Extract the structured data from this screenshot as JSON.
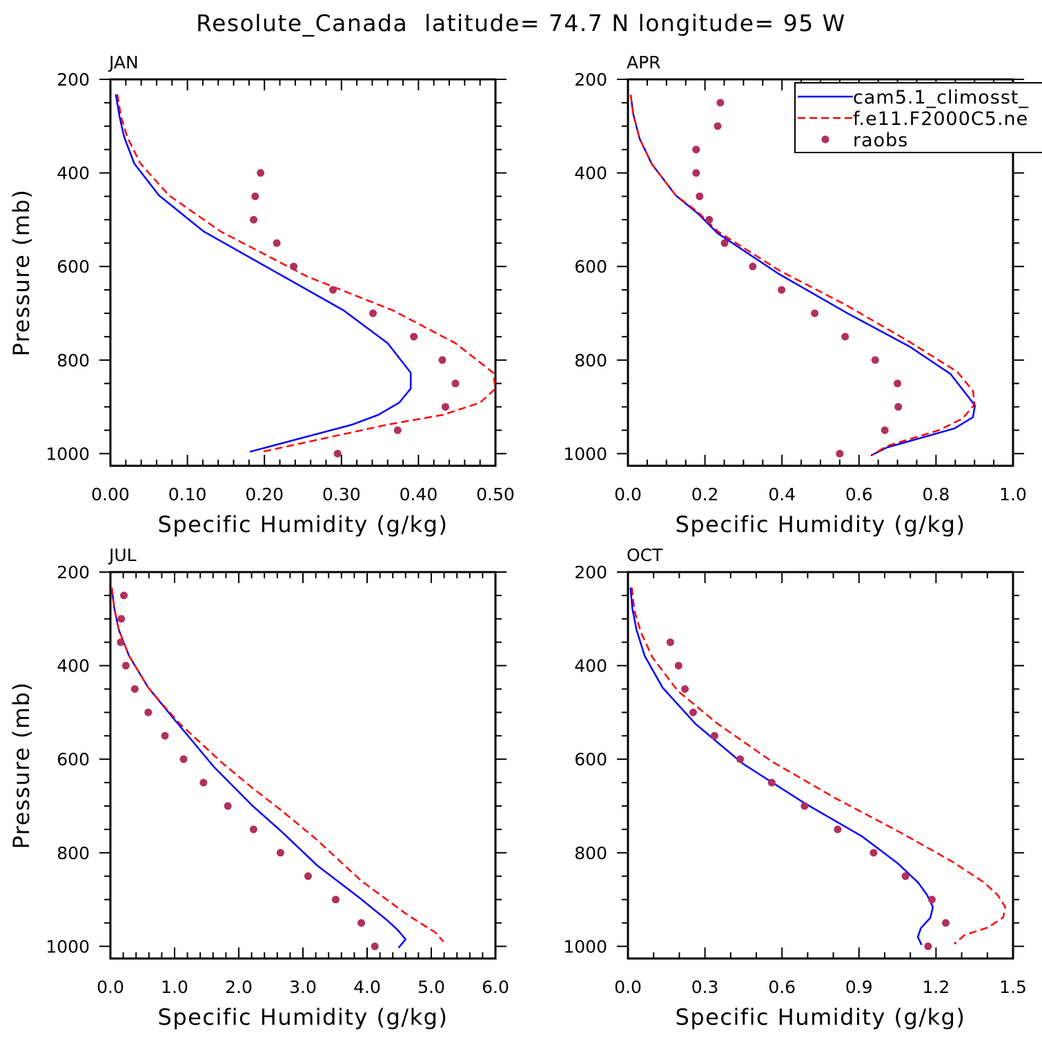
{
  "chart_data": {
    "title": "Resolute_Canada  latitude= 74.7 N longitude= 95 W",
    "legend": {
      "placement": "top-right of APR panel",
      "entries": [
        {
          "label": "cam5.1_climosst_",
          "style": "solid",
          "color": "#0000ff"
        },
        {
          "label": "f.e11.F2000C5.ne",
          "style": "dashed",
          "color": "#ff0000"
        },
        {
          "label": "raobs",
          "style": "dot",
          "color": "#b03060"
        }
      ]
    },
    "panels": [
      {
        "type": "line",
        "label": "JAN",
        "xlabel": "Specific Humidity (g/kg)",
        "ylabel": "Pressure (mb)",
        "xlim": [
          0,
          0.5
        ],
        "ylim": [
          200,
          1026
        ],
        "y_reversed": true,
        "xticks": [
          0,
          0.1,
          0.2,
          0.3,
          0.4,
          0.5
        ],
        "xtick_labels": [
          "0.00",
          "0.10",
          "0.20",
          "0.30",
          "0.40",
          "0.50"
        ],
        "xminor": 0.02,
        "yticks": [
          200,
          400,
          600,
          800,
          1000
        ],
        "ytick_labels": [
          "200",
          "400",
          "600",
          "800",
          "1000"
        ],
        "yminor": 50,
        "series": [
          {
            "name": "cam5.1_climosst_",
            "p": [
              232,
              281,
              324,
              380,
              448,
              525,
              694,
              764,
              827,
              861,
              891,
              917,
              938,
              996
            ],
            "q": [
              0.007,
              0.012,
              0.018,
              0.031,
              0.063,
              0.121,
              0.303,
              0.36,
              0.39,
              0.39,
              0.375,
              0.348,
              0.314,
              0.181
            ]
          },
          {
            "name": "f.e11.F2000C5.ne",
            "p": [
              232,
              281,
              324,
              380,
              448,
              525,
              621,
              694,
              764,
              827,
              861,
              891,
              917,
              938,
              996
            ],
            "q": [
              0.009,
              0.014,
              0.022,
              0.039,
              0.076,
              0.143,
              0.255,
              0.367,
              0.448,
              0.497,
              0.5,
              0.48,
              0.432,
              0.36,
              0.197
            ]
          },
          {
            "name": "raobs",
            "p": [
              400,
              450,
              500,
              550,
              600,
              650,
              700,
              750,
              800,
              850,
              900,
              950,
              1000
            ],
            "q": [
              0.195,
              0.188,
              0.186,
              0.216,
              0.238,
              0.289,
              0.341,
              0.394,
              0.431,
              0.448,
              0.435,
              0.373,
              0.295
            ]
          }
        ]
      },
      {
        "type": "line",
        "label": "APR",
        "xlabel": "Specific Humidity (g/kg)",
        "ylabel": "",
        "xlim": [
          0,
          1.0
        ],
        "ylim": [
          200,
          1026
        ],
        "y_reversed": true,
        "xticks": [
          0,
          0.2,
          0.4,
          0.6,
          0.8,
          1.0
        ],
        "xtick_labels": [
          "0.0",
          "0.2",
          "0.4",
          "0.6",
          "0.8",
          "1.0"
        ],
        "xminor": 0.05,
        "yticks": [
          200,
          400,
          600,
          800,
          1000
        ],
        "ytick_labels": [
          "200",
          "400",
          "600",
          "800",
          "1000"
        ],
        "yminor": 50,
        "series": [
          {
            "name": "cam5.1_climosst_",
            "p": [
              233,
              275,
              326,
              381,
              448,
              487,
              529,
              616,
              699,
              771,
              830,
              897,
              922,
              946,
              987,
              1004
            ],
            "q": [
              0.007,
              0.014,
              0.03,
              0.062,
              0.124,
              0.182,
              0.233,
              0.392,
              0.568,
              0.731,
              0.838,
              0.901,
              0.896,
              0.848,
              0.672,
              0.631
            ]
          },
          {
            "name": "f.e11.F2000C5.ne",
            "p": [
              233,
              275,
              326,
              381,
              448,
              484,
              525,
              608,
              683,
              761,
              825,
              866,
              895,
              925,
              950,
              984,
              1003
            ],
            "q": [
              0.007,
              0.014,
              0.03,
              0.062,
              0.124,
              0.182,
              0.233,
              0.392,
              0.568,
              0.731,
              0.855,
              0.896,
              0.9,
              0.869,
              0.807,
              0.672,
              0.634
            ]
          },
          {
            "name": "raobs",
            "p": [
              250,
              300,
              350,
              400,
              450,
              500,
              550,
              600,
              650,
              700,
              750,
              800,
              850,
              900,
              950,
              1000
            ],
            "q": [
              0.24,
              0.233,
              0.177,
              0.177,
              0.186,
              0.211,
              0.251,
              0.324,
              0.399,
              0.485,
              0.564,
              0.642,
              0.7,
              0.702,
              0.667,
              0.55
            ]
          }
        ]
      },
      {
        "type": "line",
        "label": "JUL",
        "xlabel": "Specific Humidity (g/kg)",
        "ylabel": "Pressure (mb)",
        "xlim": [
          0,
          6.0
        ],
        "ylim": [
          200,
          1026
        ],
        "y_reversed": true,
        "xticks": [
          0,
          1,
          2,
          3,
          4,
          5,
          6
        ],
        "xtick_labels": [
          "0.0",
          "1.0",
          "2.0",
          "3.0",
          "4.0",
          "5.0",
          "6.0"
        ],
        "xminor": 0.2,
        "yticks": [
          200,
          400,
          600,
          800,
          1000
        ],
        "ytick_labels": [
          "200",
          "400",
          "600",
          "800",
          "1000"
        ],
        "yminor": 50,
        "series": [
          {
            "name": "cam5.1_climosst_",
            "p": [
              233,
              277,
              323,
              379,
              447,
              519,
              616,
              699,
              755,
              828,
              895,
              944,
              964,
              985,
              1003
            ],
            "q": [
              0.02,
              0.06,
              0.13,
              0.29,
              0.59,
              1.02,
              1.61,
              2.21,
              2.67,
              3.23,
              3.87,
              4.31,
              4.47,
              4.6,
              4.49
            ]
          },
          {
            "name": "f.e11.F2000C5.ne",
            "p": [
              233,
              277,
              323,
              379,
              447,
              481,
              524,
              610,
              659,
              710,
              769,
              860,
              933,
              970,
              990
            ],
            "q": [
              0.02,
              0.06,
              0.13,
              0.29,
              0.59,
              0.8,
              1.08,
              1.76,
              2.19,
              2.67,
              3.19,
              3.91,
              4.63,
              5.06,
              5.19
            ]
          },
          {
            "name": "raobs",
            "p": [
              250,
              300,
              350,
              400,
              450,
              500,
              550,
              600,
              650,
              700,
              750,
              800,
              850,
              900,
              950,
              1000
            ],
            "q": [
              0.21,
              0.17,
              0.16,
              0.24,
              0.38,
              0.59,
              0.85,
              1.14,
              1.45,
              1.83,
              2.23,
              2.65,
              3.08,
              3.51,
              3.91,
              4.12
            ]
          }
        ]
      },
      {
        "type": "line",
        "label": "OCT",
        "xlabel": "Specific Humidity (g/kg)",
        "ylabel": "",
        "xlim": [
          0,
          1.5
        ],
        "ylim": [
          200,
          1026
        ],
        "y_reversed": true,
        "xticks": [
          0,
          0.3,
          0.6,
          0.9,
          1.2,
          1.5
        ],
        "xtick_labels": [
          "0.0",
          "0.3",
          "0.6",
          "0.9",
          "1.2",
          "1.5"
        ],
        "xminor": 0.1,
        "yticks": [
          200,
          400,
          600,
          800,
          1000
        ],
        "ytick_labels": [
          "200",
          "400",
          "600",
          "800",
          "1000"
        ],
        "yminor": 50,
        "series": [
          {
            "name": "cam5.1_climosst_",
            "p": [
              233,
              277,
              323,
              379,
              447,
              525,
              610,
              694,
              765,
              823,
              864,
              891,
              916,
              939,
              961,
              980,
              997
            ],
            "q": [
              0.01,
              0.017,
              0.033,
              0.065,
              0.135,
              0.264,
              0.449,
              0.688,
              0.912,
              1.052,
              1.131,
              1.166,
              1.188,
              1.178,
              1.141,
              1.129,
              1.144
            ]
          },
          {
            "name": "f.e11.F2000C5.ne",
            "p": [
              233,
              282,
              328,
              382,
              454,
              524,
              604,
              683,
              758,
              820,
              863,
              890,
              916,
              938,
              959,
              976,
              995
            ],
            "q": [
              0.015,
              0.025,
              0.05,
              0.095,
              0.194,
              0.349,
              0.558,
              0.807,
              1.066,
              1.266,
              1.386,
              1.44,
              1.47,
              1.462,
              1.405,
              1.311,
              1.271
            ]
          },
          {
            "name": "raobs",
            "p": [
              350,
              400,
              450,
              500,
              550,
              600,
              650,
              700,
              750,
              800,
              850,
              900,
              950,
              1000
            ],
            "q": [
              0.165,
              0.197,
              0.222,
              0.254,
              0.337,
              0.437,
              0.56,
              0.688,
              0.817,
              0.957,
              1.081,
              1.184,
              1.238,
              1.169
            ]
          }
        ]
      }
    ]
  }
}
